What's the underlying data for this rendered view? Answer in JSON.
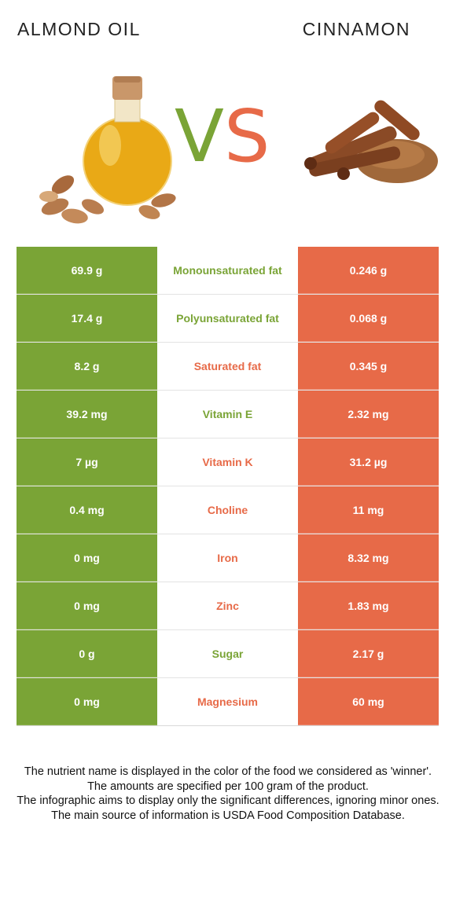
{
  "header": {
    "left_title": "ALMOND OIL",
    "right_title": "CINNAMON",
    "vs_v": "V",
    "vs_s": "S"
  },
  "colors": {
    "left_food": "#7aa436",
    "right_food": "#e76a48"
  },
  "images": {
    "left": "almond-oil-bottle-with-almonds",
    "right": "cinnamon-sticks-with-ground-cinnamon"
  },
  "rows": [
    {
      "left": "69.9 g",
      "nutrient": "Monounsaturated fat",
      "right": "0.246 g",
      "winner": "left"
    },
    {
      "left": "17.4 g",
      "nutrient": "Polyunsaturated fat",
      "right": "0.068 g",
      "winner": "left"
    },
    {
      "left": "8.2 g",
      "nutrient": "Saturated fat",
      "right": "0.345 g",
      "winner": "right"
    },
    {
      "left": "39.2 mg",
      "nutrient": "Vitamin E",
      "right": "2.32 mg",
      "winner": "left"
    },
    {
      "left": "7 µg",
      "nutrient": "Vitamin K",
      "right": "31.2 µg",
      "winner": "right"
    },
    {
      "left": "0.4 mg",
      "nutrient": "Choline",
      "right": "11 mg",
      "winner": "right"
    },
    {
      "left": "0 mg",
      "nutrient": "Iron",
      "right": "8.32 mg",
      "winner": "right"
    },
    {
      "left": "0 mg",
      "nutrient": "Zinc",
      "right": "1.83 mg",
      "winner": "right"
    },
    {
      "left": "0 g",
      "nutrient": "Sugar",
      "right": "2.17 g",
      "winner": "left"
    },
    {
      "left": "0 mg",
      "nutrient": "Magnesium",
      "right": "60 mg",
      "winner": "right"
    }
  ],
  "footer": {
    "line1": "The nutrient name is displayed in the color of the food we considered as 'winner'.",
    "line2": "The amounts are specified per 100 gram of the product.",
    "line3": "The infographic aims to display only the significant differences, ignoring minor ones.",
    "line4": "The main source of information is USDA Food Composition Database."
  }
}
